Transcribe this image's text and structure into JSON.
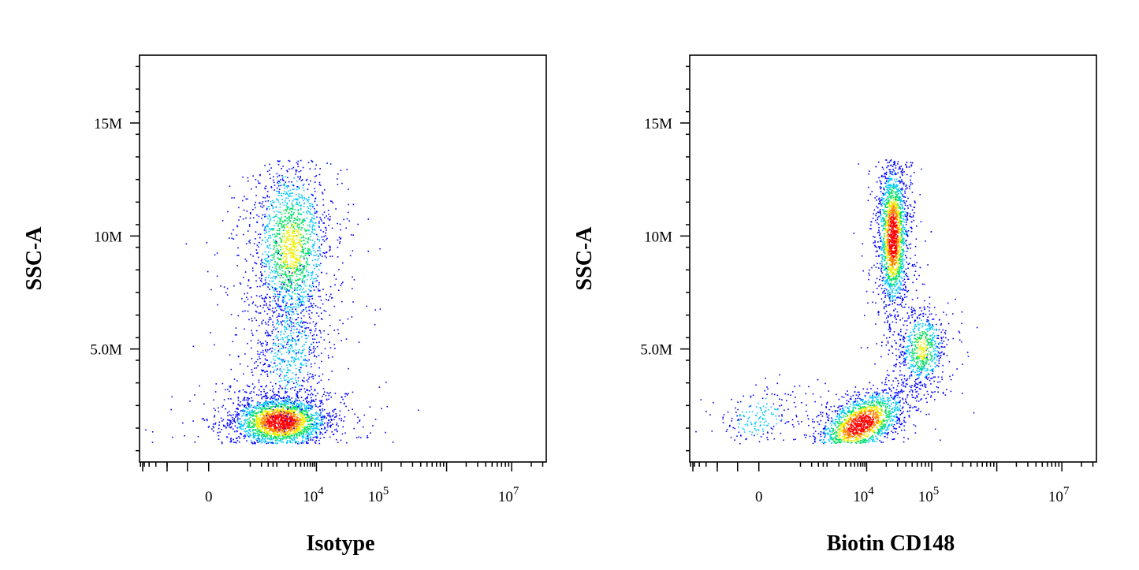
{
  "chart_data": [
    {
      "type": "scatter",
      "subtype": "flow-cytometry-density-dot-plot",
      "title": "",
      "xlabel": "Isotype",
      "ylabel": "SSC-A",
      "x_scale": "biexponential",
      "x_tick_labels": [
        {
          "value": 0,
          "text": "0"
        },
        {
          "value": 10000,
          "base": "10",
          "exp": "4"
        },
        {
          "value": 100000,
          "base": "10",
          "exp": "5"
        },
        {
          "value": 10000000,
          "base": "10",
          "exp": "7"
        }
      ],
      "y_tick_labels": [
        {
          "value": 5000000,
          "text": "5.0M"
        },
        {
          "value": 10000000,
          "text": "10M"
        },
        {
          "value": 15000000,
          "text": "15M"
        }
      ],
      "ylim": [
        0,
        18000000
      ],
      "color_scale": [
        "#0000ff",
        "#00c8ff",
        "#00e060",
        "#f0f000",
        "#ff8000",
        "#ff0000"
      ],
      "populations": [
        {
          "name": "",
          "x_center": 1200,
          "y_center_M": 1.8,
          "n": 2400,
          "peak_density": "high"
        },
        {
          "name": "",
          "x_center": 2200,
          "y_center_M": 9.5,
          "n": 1800,
          "peak_density": "medium"
        },
        {
          "name": "",
          "x_center": 2000,
          "y_center_M": 5.0,
          "n": 700,
          "peak_density": "low"
        }
      ]
    },
    {
      "type": "scatter",
      "subtype": "flow-cytometry-density-dot-plot",
      "title": "",
      "xlabel": "Biotin CD148",
      "ylabel": "SSC-A",
      "x_scale": "biexponential",
      "x_tick_labels": [
        {
          "value": 0,
          "text": "0"
        },
        {
          "value": 10000,
          "base": "10",
          "exp": "4"
        },
        {
          "value": 100000,
          "base": "10",
          "exp": "5"
        },
        {
          "value": 10000000,
          "base": "10",
          "exp": "7"
        }
      ],
      "y_tick_labels": [
        {
          "value": 5000000,
          "text": "5.0M"
        },
        {
          "value": 10000000,
          "text": "10M"
        },
        {
          "value": 15000000,
          "text": "15M"
        }
      ],
      "ylim": [
        0,
        18000000
      ],
      "color_scale": [
        "#0000ff",
        "#00c8ff",
        "#00e060",
        "#f0f000",
        "#ff8000",
        "#ff0000"
      ],
      "populations": [
        {
          "name": "",
          "x_center": 7000,
          "y_center_M": 1.7,
          "n": 2200,
          "peak_density": "high"
        },
        {
          "name": "",
          "x_center": 25000,
          "y_center_M": 10.0,
          "n": 2200,
          "peak_density": "high"
        },
        {
          "name": "",
          "x_center": 70000,
          "y_center_M": 5.0,
          "n": 700,
          "peak_density": "medium"
        },
        {
          "name": "",
          "x_center": 0,
          "y_center_M": 2.0,
          "n": 220,
          "peak_density": "low"
        }
      ]
    }
  ]
}
